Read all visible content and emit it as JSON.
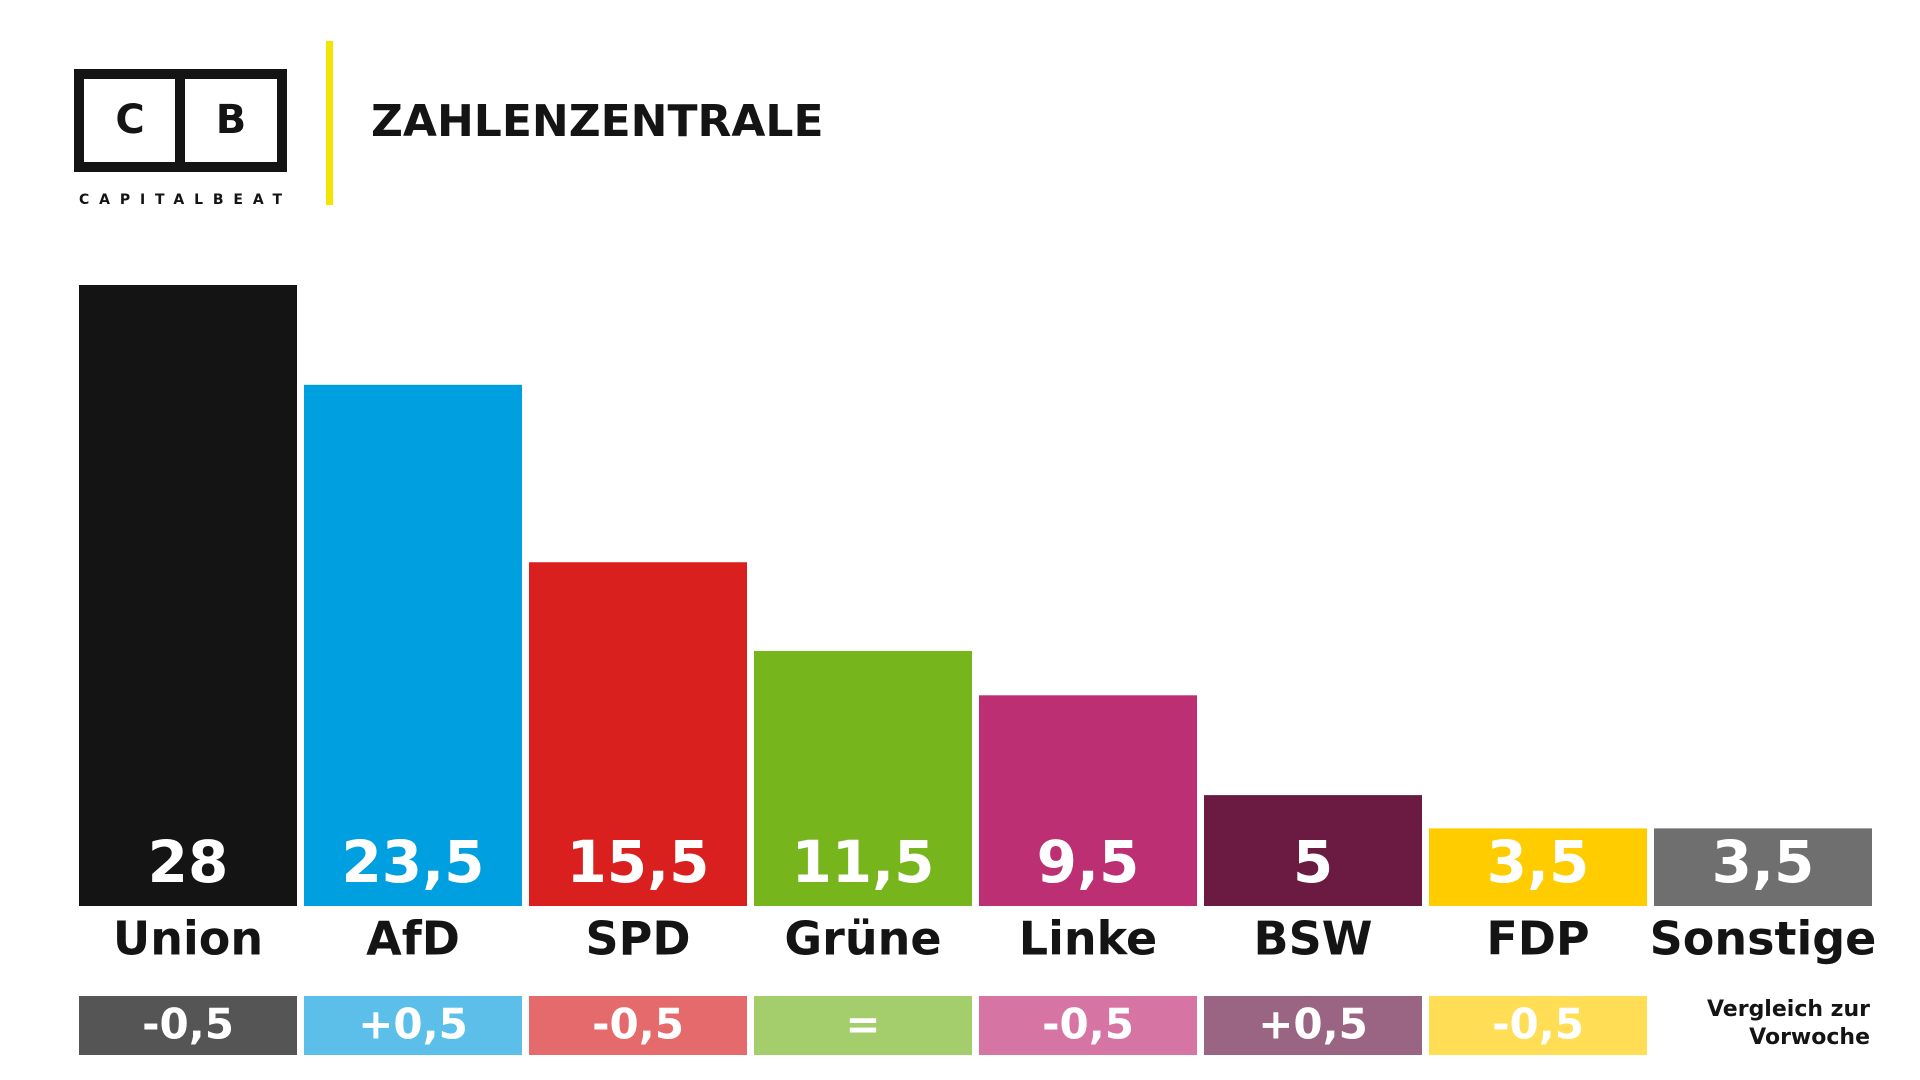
{
  "logo": {
    "letters": [
      "C",
      "B"
    ],
    "name": "CAPITALBEAT"
  },
  "chart_data": {
    "type": "bar",
    "title": "ZAHLENZENTRALE",
    "categories": [
      "Union",
      "AfD",
      "SPD",
      "Grüne",
      "Linke",
      "BSW",
      "FDP",
      "Sonstige"
    ],
    "values": [
      28,
      23.5,
      15.5,
      11.5,
      9.5,
      5,
      3.5,
      3.5
    ],
    "value_labels": [
      "28",
      "23,5",
      "15,5",
      "11,5",
      "9,5",
      "5",
      "3,5",
      "3,5"
    ],
    "colors": [
      "#141414",
      "#009fe0",
      "#d9201f",
      "#76b51c",
      "#bd2f73",
      "#6b1a42",
      "#ffcc00",
      "#6f6f70"
    ],
    "change": {
      "values": [
        -0.5,
        0.5,
        -0.5,
        0,
        -0.5,
        0.5,
        -0.5,
        null
      ],
      "value_labels": [
        "-0,5",
        "+0,5",
        "-0,5",
        "=",
        "-0,5",
        "+0,5",
        "-0,5",
        null
      ],
      "colors": [
        "#555555",
        "#5bbfe9",
        "#e56a6b",
        "#a4cd6b",
        "#d675a4",
        "#9a6582",
        "#ffdd55",
        null
      ],
      "label": [
        "Vergleich zur",
        "Vorwoche"
      ]
    }
  }
}
